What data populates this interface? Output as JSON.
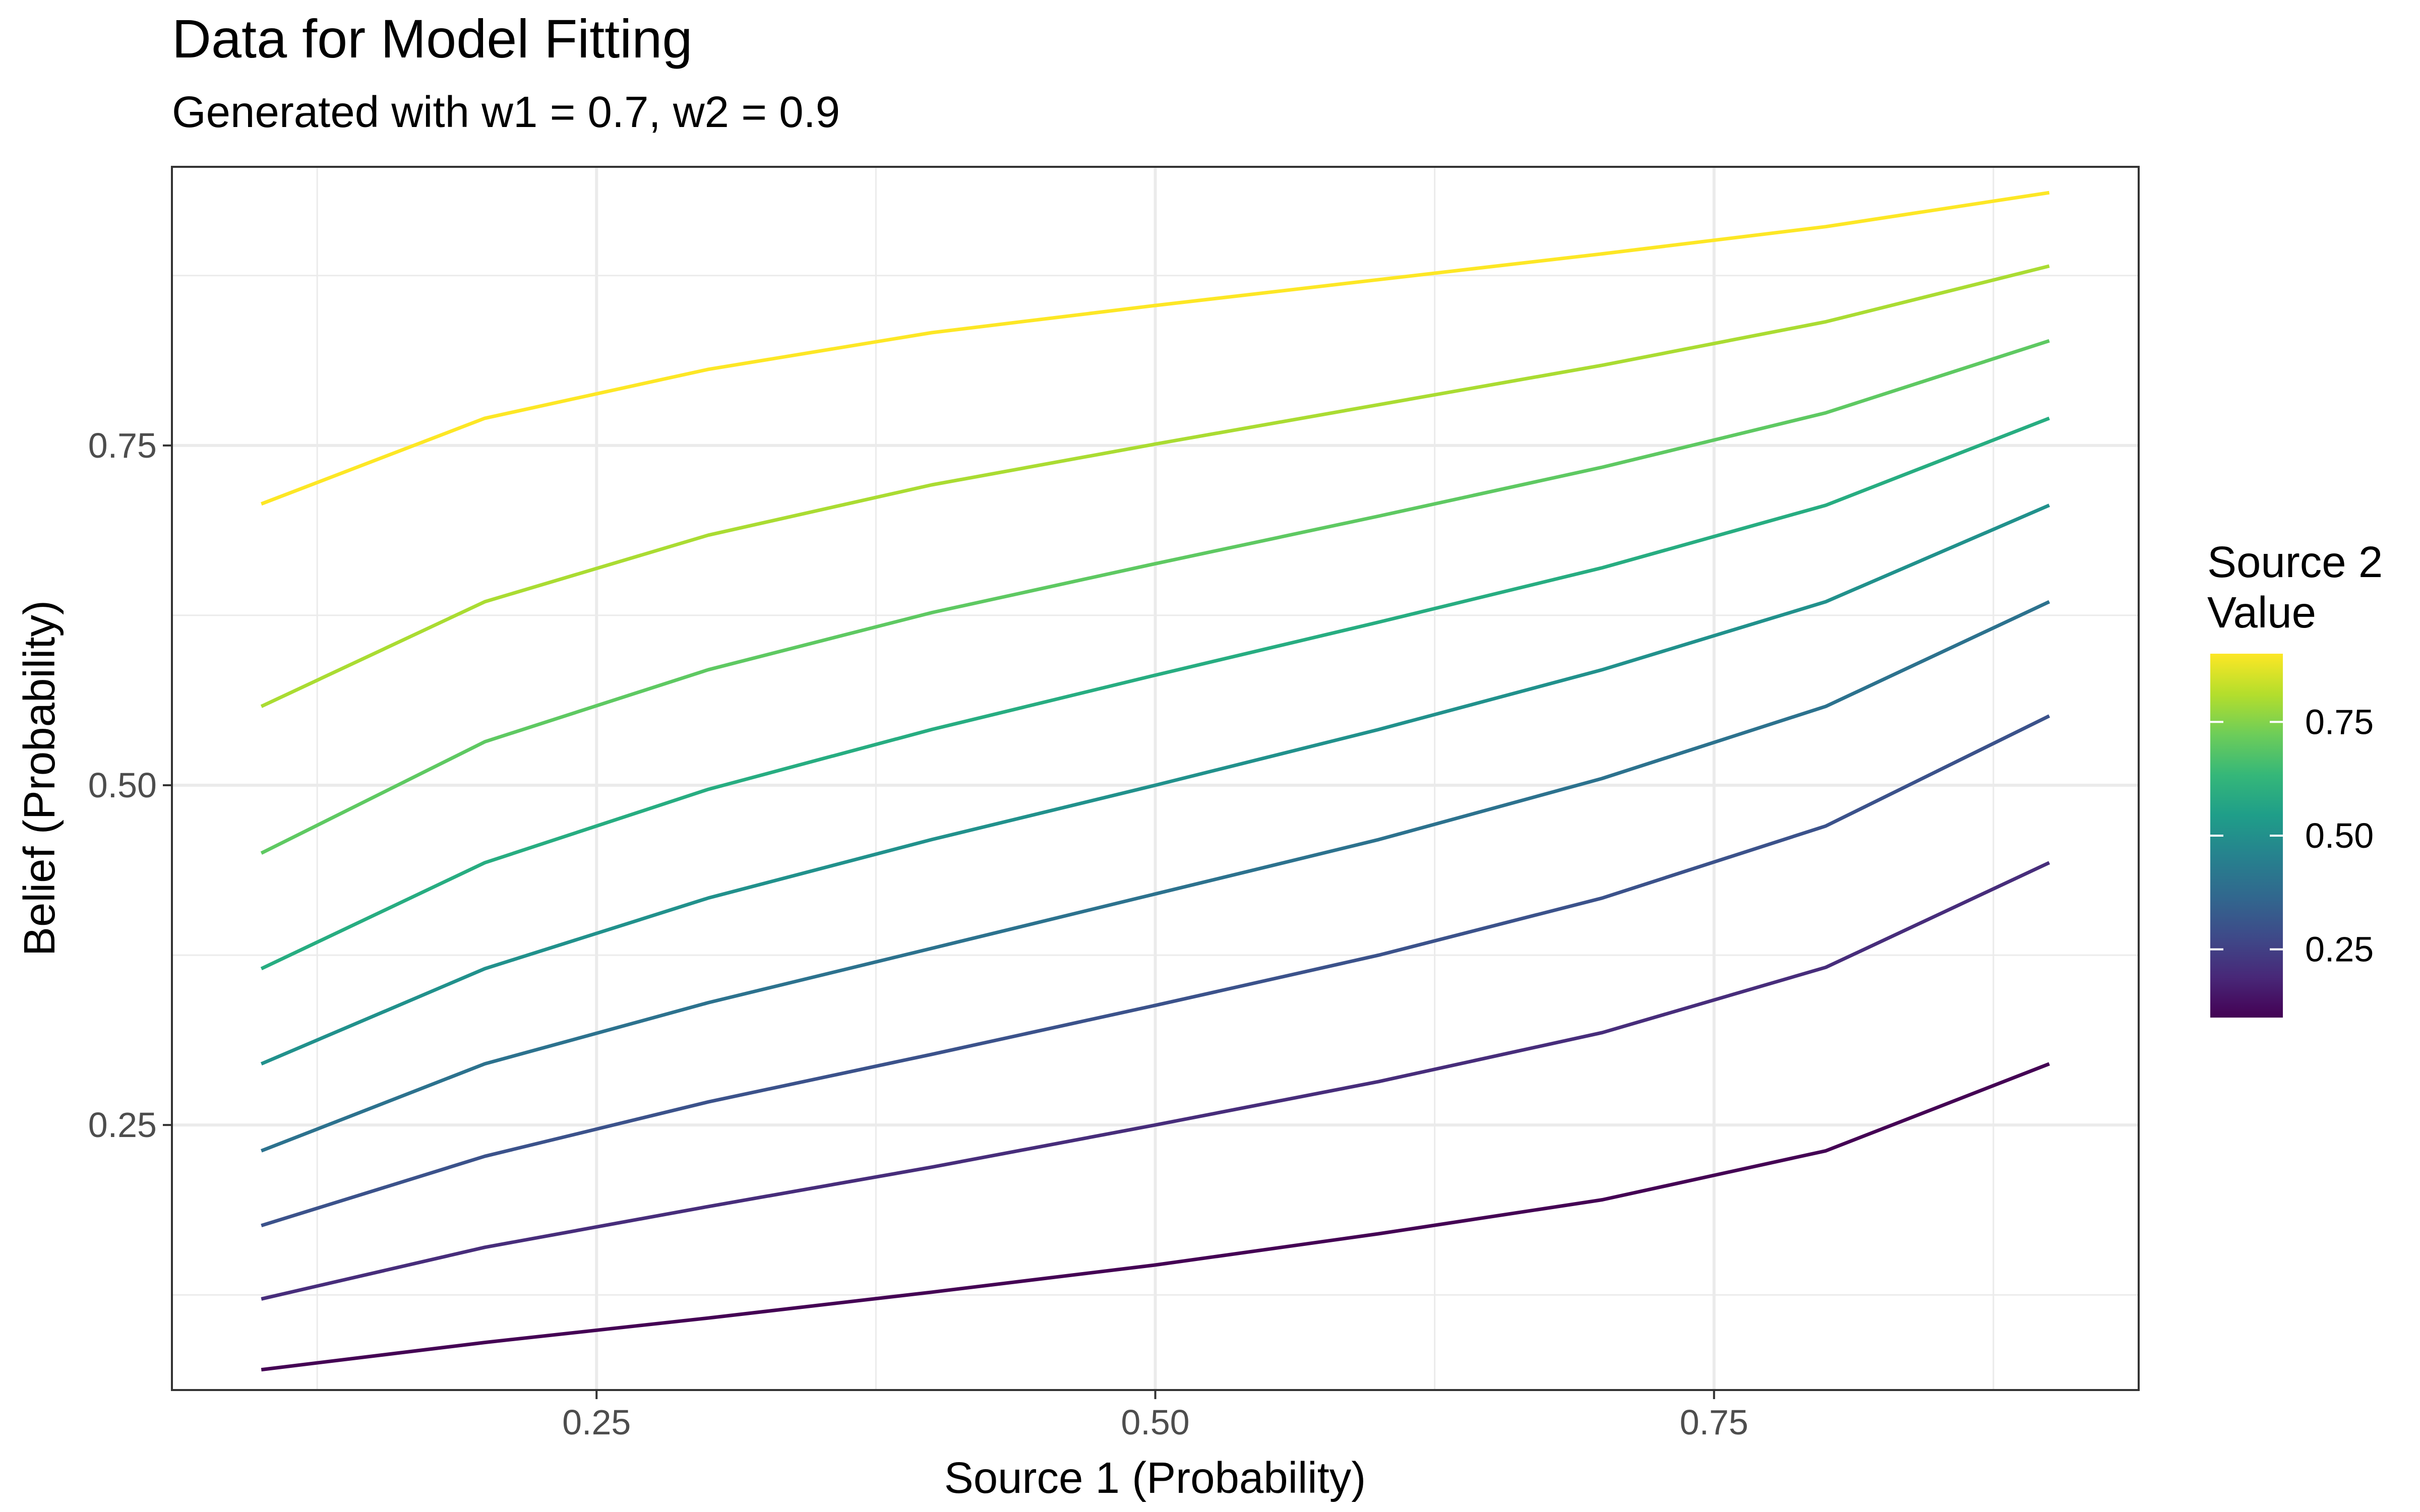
{
  "chart_data": {
    "type": "line",
    "title": "Data for Model Fitting",
    "subtitle": "Generated with w1 = 0.7, w2 = 0.9",
    "xlabel": "Source 1 (Probability)",
    "ylabel": "Belief (Probability)",
    "xlim": [
      0.06,
      0.94
    ],
    "ylim": [
      0.055,
      0.955
    ],
    "x_ticks": [
      0.25,
      0.5,
      0.75
    ],
    "x_tick_labels": [
      "0.25",
      "0.50",
      "0.75"
    ],
    "y_ticks": [
      0.25,
      0.5,
      0.75
    ],
    "y_tick_labels": [
      "0.25",
      "0.50",
      "0.75"
    ],
    "grid": true,
    "legend": {
      "title_lines": [
        "Source 2",
        "Value"
      ],
      "position": "right",
      "type": "colorbar",
      "range": [
        0.1,
        0.9
      ],
      "ticks": [
        0.25,
        0.5,
        0.75
      ],
      "tick_labels": [
        "0.25",
        "0.50",
        "0.75"
      ],
      "palette": [
        "#440154",
        "#482878",
        "#3E4A89",
        "#31688E",
        "#26828E",
        "#1F9E89",
        "#35B779",
        "#6DCD59",
        "#B4DE2C",
        "#FDE725"
      ]
    },
    "x": [
      0.1,
      0.2,
      0.3,
      0.4,
      0.5,
      0.6,
      0.7,
      0.8,
      0.9
    ],
    "series": [
      {
        "source2": 0.1,
        "color": "#440154",
        "values": [
          0.07,
          0.09,
          0.108,
          0.127,
          0.147,
          0.17,
          0.195,
          0.231,
          0.295
        ]
      },
      {
        "source2": 0.2,
        "color": "#472D7B",
        "values": [
          0.122,
          0.16,
          0.19,
          0.219,
          0.25,
          0.282,
          0.318,
          0.366,
          0.443
        ]
      },
      {
        "source2": 0.3,
        "color": "#3B528B",
        "values": [
          0.176,
          0.227,
          0.267,
          0.302,
          0.338,
          0.375,
          0.417,
          0.47,
          0.551
        ]
      },
      {
        "source2": 0.4,
        "color": "#2C728E",
        "values": [
          0.231,
          0.295,
          0.34,
          0.38,
          0.42,
          0.46,
          0.505,
          0.558,
          0.635
        ]
      },
      {
        "source2": 0.5,
        "color": "#21918C",
        "values": [
          0.295,
          0.365,
          0.417,
          0.46,
          0.5,
          0.541,
          0.585,
          0.635,
          0.706
        ]
      },
      {
        "source2": 0.6,
        "color": "#27AD81",
        "values": [
          0.365,
          0.443,
          0.497,
          0.541,
          0.581,
          0.62,
          0.66,
          0.706,
          0.77
        ]
      },
      {
        "source2": 0.7,
        "color": "#5EC962",
        "values": [
          0.45,
          0.532,
          0.585,
          0.627,
          0.663,
          0.698,
          0.734,
          0.774,
          0.827
        ]
      },
      {
        "source2": 0.8,
        "color": "#AADC32",
        "values": [
          0.558,
          0.635,
          0.684,
          0.721,
          0.751,
          0.78,
          0.809,
          0.841,
          0.882
        ]
      },
      {
        "source2": 0.9,
        "color": "#FDE725",
        "values": [
          0.707,
          0.77,
          0.806,
          0.833,
          0.853,
          0.872,
          0.891,
          0.911,
          0.936
        ]
      }
    ]
  }
}
